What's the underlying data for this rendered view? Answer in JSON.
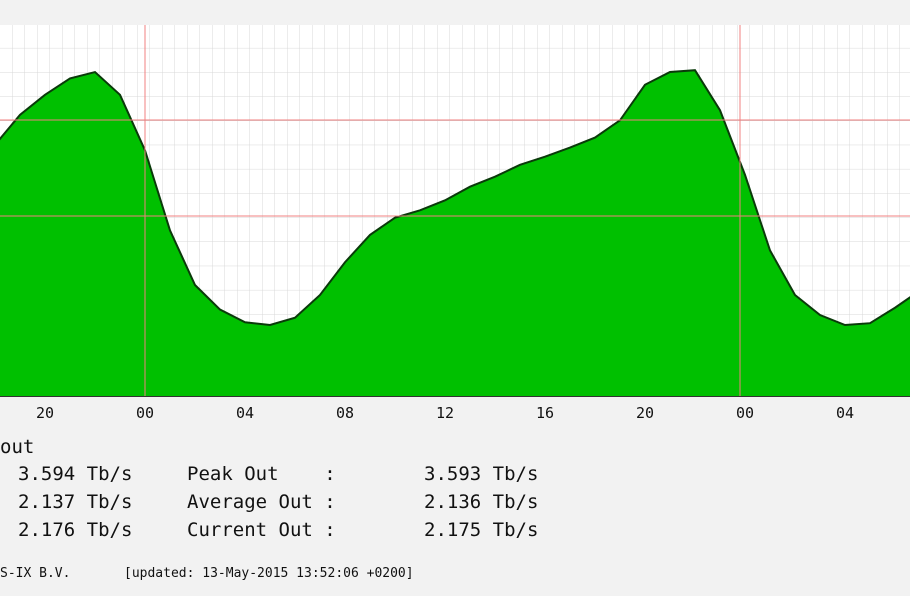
{
  "chart_data": {
    "type": "area",
    "categories": [
      null,
      null,
      "20",
      null,
      null,
      null,
      "00",
      null,
      null,
      null,
      "04",
      null,
      null,
      null,
      "08",
      null,
      null,
      null,
      "12",
      null,
      null,
      null,
      "16",
      null,
      null,
      null,
      "20",
      null,
      null,
      null,
      "00",
      null,
      null,
      null,
      "04",
      null,
      null,
      null
    ],
    "series": [
      {
        "name": "out",
        "color": "#00c000",
        "values": [
          2.76,
          3.09,
          3.31,
          3.49,
          3.56,
          3.31,
          2.7,
          1.82,
          1.22,
          0.95,
          0.81,
          0.78,
          0.86,
          1.11,
          1.47,
          1.77,
          1.96,
          2.04,
          2.15,
          2.3,
          2.41,
          2.54,
          2.63,
          2.73,
          2.84,
          3.03,
          3.42,
          3.56,
          3.58,
          3.14,
          2.43,
          1.6,
          1.11,
          0.89,
          0.78,
          0.8,
          0.97,
          1.16
        ]
      }
    ],
    "ylim": [
      0,
      4
    ]
  },
  "legend": {
    "rows": [
      [
        "3.594 Tb/s",
        "Peak Out    :",
        "3.593 Tb/s"
      ],
      [
        "2.137 Tb/s",
        "Average Out :",
        "2.136 Tb/s"
      ],
      [
        "2.176 Tb/s",
        "Current Out :",
        "2.175 Tb/s"
      ]
    ]
  },
  "footer": {
    "org": "S-IX B.V.",
    "updated": "[updated: 13-May-2015 13:52:06 +0200]"
  }
}
